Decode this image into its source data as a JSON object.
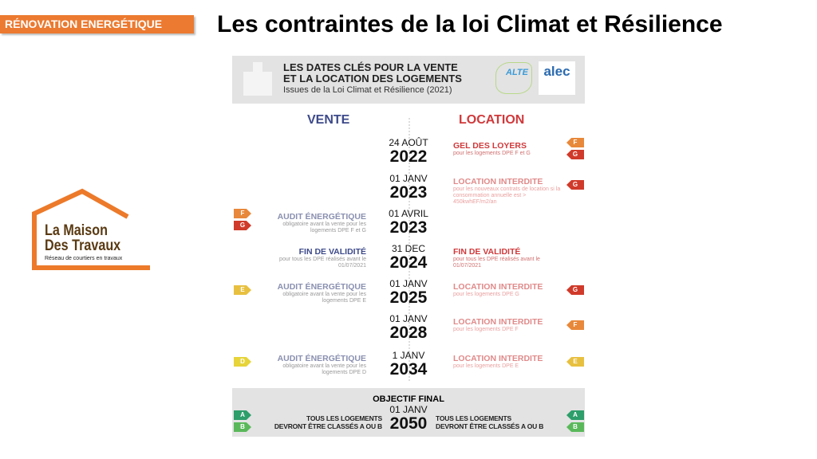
{
  "slide": {
    "tag": "RÉNOVATION ENERGÉTIQUE",
    "title": "Les contraintes de la loi Climat et Résilience"
  },
  "logo": {
    "line1": "La Maison",
    "line2": "Des Travaux",
    "tagline": "Réseau de courtiers en travaux"
  },
  "infographic": {
    "header_line1": "LES DATES CLÉS POUR LA VENTE",
    "header_line2": "ET LA LOCATION DES LOGEMENTS",
    "subtitle": "Issues de la Loi Climat et Résilience (2021)",
    "partner1": "ALTE",
    "partner2": "alec",
    "col_vente": "VENTE",
    "col_location": "LOCATION",
    "colors": {
      "vente": "#3d4a8a",
      "location": "#d0393b",
      "A": "#2e9e6a",
      "B": "#5ab85a",
      "D": "#e6d43a",
      "E": "#e8c040",
      "F": "#e8883a",
      "G": "#d03a2a"
    },
    "rows": [
      {
        "day": "24 AOÛT",
        "year": "2022",
        "right": {
          "title": "GEL DES LOYERS",
          "sub": "pour les logements DPE F et G",
          "strong": true
        },
        "right_badges": [
          "F",
          "G"
        ]
      },
      {
        "day": "01 JANV",
        "year": "2023",
        "right": {
          "title": "LOCATION INTERDITE",
          "sub": "pour les nouveaux contrats de location si la consommation annuelle est > 450kwhEF/m2/an"
        },
        "right_badges": [
          "G"
        ]
      },
      {
        "day": "01 AVRIL",
        "year": "2023",
        "left": {
          "title": "AUDIT ÉNERGÉTIQUE",
          "sub": "obligatoire avant la vente pour les logements DPE F et G"
        },
        "left_badges": [
          "F",
          "G"
        ]
      },
      {
        "day": "31 DEC",
        "year": "2024",
        "left": {
          "title": "FIN DE VALIDITÉ",
          "sub": "pour tous les DPE réalisés avant le 01/07/2021",
          "strong": true
        },
        "right": {
          "title": "FIN DE VALIDITÉ",
          "sub": "pour tous les DPE réalisés avant le 01/07/2021",
          "strong": true
        }
      },
      {
        "day": "01 JANV",
        "year": "2025",
        "left": {
          "title": "AUDIT ÉNERGÉTIQUE",
          "sub": "obligatoire avant la vente pour les logements DPE E"
        },
        "left_badges": [
          "E"
        ],
        "right": {
          "title": "LOCATION INTERDITE",
          "sub": "pour les logements DPE G"
        },
        "right_badges": [
          "G"
        ]
      },
      {
        "day": "01 JANV",
        "year": "2028",
        "right": {
          "title": "LOCATION INTERDITE",
          "sub": "pour les logements DPE F"
        },
        "right_badges": [
          "F"
        ]
      },
      {
        "day": "1 JANV",
        "year": "2034",
        "left": {
          "title": "AUDIT ÉNERGÉTIQUE",
          "sub": "obligatoire avant la vente pour les logements DPE D"
        },
        "left_badges": [
          "D"
        ],
        "right": {
          "title": "LOCATION INTERDITE",
          "sub": "pour les logements DPE E"
        },
        "right_badges": [
          "E"
        ]
      }
    ],
    "final": {
      "title": "OBJECTIF FINAL",
      "day": "01 JANV",
      "year": "2050",
      "left_l1": "TOUS LES LOGEMENTS",
      "left_l2": "DEVRONT ÊTRE CLASSÉS A OU B",
      "right_l1": "TOUS LES LOGEMENTS",
      "right_l2": "DEVRONT ÊTRE CLASSÉS A OU B",
      "badges": [
        "A",
        "B"
      ]
    }
  }
}
